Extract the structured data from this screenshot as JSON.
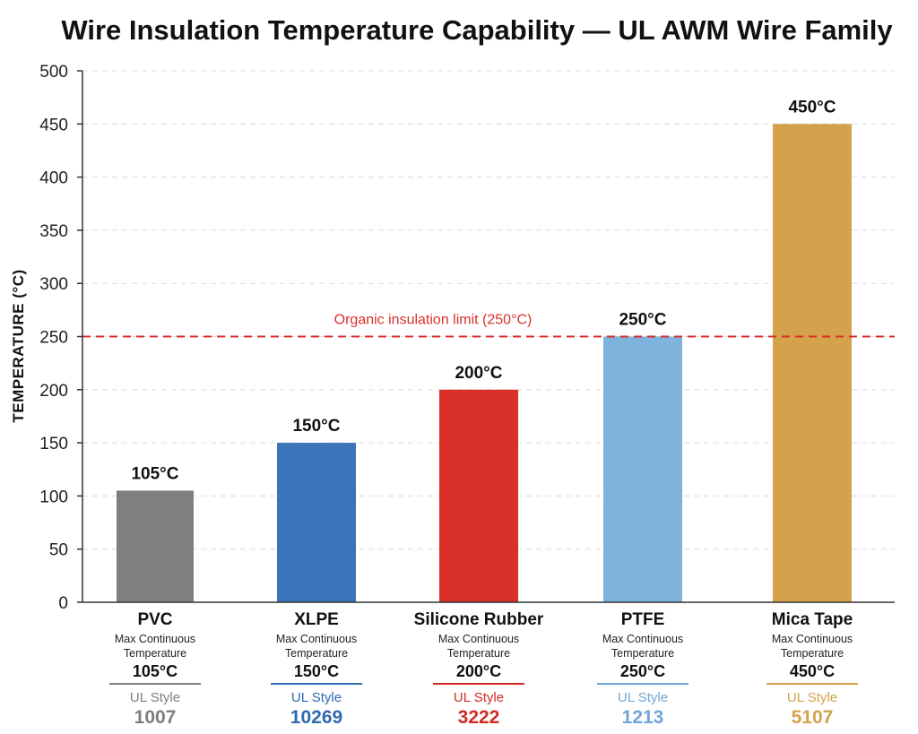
{
  "chart_data": {
    "type": "bar",
    "title": "Wire Insulation Temperature Capability — UL AWM Wire Family",
    "ylabel": "TEMPERATURE (°C)",
    "xlabel": "",
    "ylim": [
      0,
      500
    ],
    "yticks": [
      0,
      50,
      100,
      150,
      200,
      250,
      300,
      350,
      400,
      450,
      500
    ],
    "grid": true,
    "categories": [
      "PVC",
      "XLPE",
      "Silicone Rubber",
      "PTFE",
      "Mica Tape"
    ],
    "values": [
      105,
      150,
      200,
      250,
      450
    ],
    "data_labels": [
      "105°C",
      "150°C",
      "200°C",
      "250°C",
      "450°C"
    ],
    "colors": [
      "#7f7f7f",
      "#3a73b8",
      "#d9302a",
      "#7fb2dd",
      "#d4a24c"
    ],
    "category_details": [
      {
        "line1": "Max Continuous",
        "line2": "Temperature",
        "temp": "105°C",
        "style_label": "UL Style",
        "style_number": "1007",
        "color": "#7f7f7f"
      },
      {
        "line1": "Max Continuous",
        "line2": "Temperature",
        "temp": "150°C",
        "style_label": "UL Style",
        "style_number": "10269",
        "color": "#2f6ab0"
      },
      {
        "line1": "Max Continuous",
        "line2": "Temperature",
        "temp": "200°C",
        "style_label": "UL Style",
        "style_number": "3222",
        "color": "#d32a24"
      },
      {
        "line1": "Max Continuous",
        "line2": "Temperature",
        "temp": "250°C",
        "style_label": "UL Style",
        "style_number": "1213",
        "color": "#6fa6d6"
      },
      {
        "line1": "Max Continuous",
        "line2": "Temperature",
        "temp": "450°C",
        "style_label": "UL Style",
        "style_number": "5107",
        "color": "#d4a24c"
      }
    ],
    "reference_line": {
      "value": 250,
      "label": "Organic insulation limit (250°C)",
      "color": "#d9302a"
    }
  }
}
